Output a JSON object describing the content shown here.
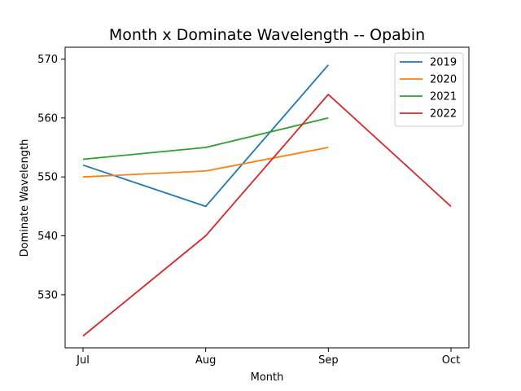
{
  "chart_data": {
    "type": "line",
    "title": "Month x Dominate Wavelength -- Opabin",
    "xlabel": "Month",
    "ylabel": "Dominate Wavelength",
    "categories": [
      "Jul",
      "Aug",
      "Sep",
      "Oct"
    ],
    "ylim": [
      521,
      572
    ],
    "yticks": [
      530,
      540,
      550,
      560,
      570
    ],
    "grid": false,
    "legend_position": "top-right",
    "series": [
      {
        "name": "2019",
        "color": "#1f77b4",
        "values": [
          552,
          545,
          569,
          null
        ]
      },
      {
        "name": "2020",
        "color": "#ff7f0e",
        "values": [
          550,
          551,
          555,
          null
        ]
      },
      {
        "name": "2021",
        "color": "#2ca02c",
        "values": [
          553,
          555,
          560,
          null
        ]
      },
      {
        "name": "2022",
        "color": "#d62728",
        "values": [
          523,
          540,
          564,
          545
        ]
      }
    ]
  }
}
